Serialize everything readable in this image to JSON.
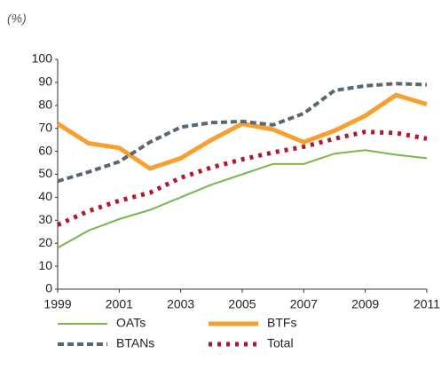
{
  "chart_data": {
    "type": "line",
    "y_label": "(%)",
    "x": [
      1999,
      2000,
      2001,
      2002,
      2003,
      2004,
      2005,
      2006,
      2007,
      2008,
      2009,
      2010,
      2011
    ],
    "xlim": [
      1999,
      2011
    ],
    "xticks": [
      1999,
      2001,
      2003,
      2005,
      2007,
      2009,
      2011
    ],
    "ylim": [
      0,
      100
    ],
    "yticks": [
      0,
      10,
      20,
      30,
      40,
      50,
      60,
      70,
      80,
      90,
      100
    ],
    "grid": false,
    "legend": "bottom",
    "series": [
      {
        "name": "OATs",
        "color": "#7ab648",
        "style": "solid",
        "values": [
          18,
          25.5,
          30.5,
          34.5,
          40,
          45.5,
          50,
          54.5,
          54.5,
          59,
          60.5,
          58.5,
          57
        ]
      },
      {
        "name": "BTFs",
        "color": "#f7a030",
        "style": "thick",
        "values": [
          72,
          63.5,
          61.5,
          52.5,
          57,
          65,
          72,
          69.5,
          64,
          69,
          75.5,
          84.5,
          80.5
        ]
      },
      {
        "name": "BTANs",
        "color": "#5a6670",
        "style": "dashed",
        "values": [
          47,
          51,
          55.5,
          64,
          70.5,
          72.5,
          73,
          71.5,
          76.5,
          86.5,
          88.5,
          89.5,
          89
        ]
      },
      {
        "name": "Total",
        "color": "#b0182d",
        "style": "dotted",
        "values": [
          28,
          34,
          38.5,
          42,
          48.5,
          53,
          56.5,
          59.5,
          62,
          65.5,
          68.5,
          68,
          65.5
        ]
      }
    ]
  }
}
